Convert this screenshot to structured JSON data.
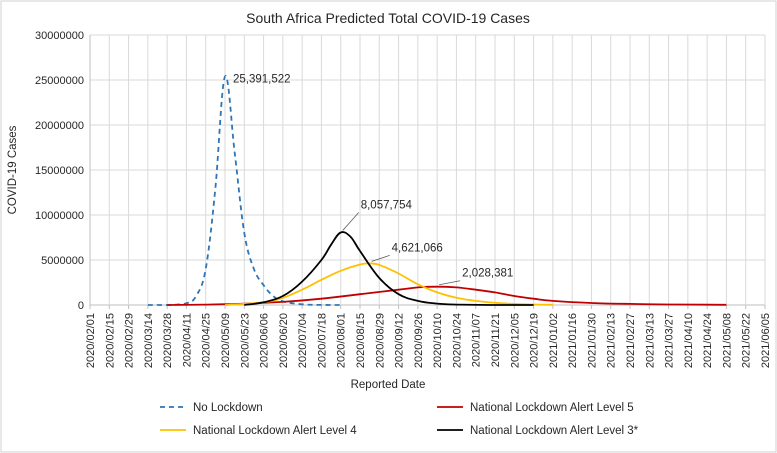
{
  "chart_data": {
    "type": "line",
    "title": "South Africa Predicted Total COVID-19 Cases",
    "xlabel": "Reported Date",
    "ylabel": "COVID-19 Cases",
    "ylim": [
      0,
      30000000
    ],
    "yticks": [
      "0",
      "5000000",
      "10000000",
      "15000000",
      "20000000",
      "25000000",
      "30000000"
    ],
    "x_categories": [
      "2020/02/01",
      "2020/02/15",
      "2020/02/29",
      "2020/03/14",
      "2020/03/28",
      "2020/04/11",
      "2020/04/25",
      "2020/05/09",
      "2020/05/23",
      "2020/06/06",
      "2020/06/20",
      "2020/07/04",
      "2020/07/18",
      "2020/08/01",
      "2020/08/15",
      "2020/08/29",
      "2020/09/12",
      "2020/09/26",
      "2020/10/10",
      "2020/10/24",
      "2020/11/07",
      "2020/11/21",
      "2020/12/05",
      "2020/12/19",
      "2021/01/02",
      "2021/01/16",
      "2021/01/30",
      "2021/02/13",
      "2021/02/27",
      "2021/03/13",
      "2021/03/27",
      "2021/04/10",
      "2021/04/24",
      "2021/05/08",
      "2021/05/22",
      "2021/06/05"
    ],
    "grid": true,
    "legend_position": "bottom",
    "series": [
      {
        "name": "No Lockdown",
        "color": "#2e75b6",
        "dash": "dashed",
        "points": [
          [
            "2020/03/14",
            0
          ],
          [
            "2020/03/28",
            0
          ],
          [
            "2020/04/11",
            200000
          ],
          [
            "2020/04/18",
            1000000
          ],
          [
            "2020/04/25",
            4000000
          ],
          [
            "2020/05/02",
            13000000
          ],
          [
            "2020/05/09",
            25391522
          ],
          [
            "2020/05/16",
            17000000
          ],
          [
            "2020/05/23",
            8000000
          ],
          [
            "2020/05/30",
            4000000
          ],
          [
            "2020/06/06",
            2200000
          ],
          [
            "2020/06/13",
            1000000
          ],
          [
            "2020/06/20",
            400000
          ],
          [
            "2020/07/04",
            80000
          ],
          [
            "2020/07/18",
            10000
          ],
          [
            "2020/08/01",
            0
          ]
        ]
      },
      {
        "name": "National Lockdown Alert Level 5",
        "color": "#c00000",
        "dash": "solid",
        "points": [
          [
            "2020/03/28",
            0
          ],
          [
            "2020/04/25",
            50000
          ],
          [
            "2020/05/23",
            150000
          ],
          [
            "2020/06/20",
            350000
          ],
          [
            "2020/07/18",
            700000
          ],
          [
            "2020/08/15",
            1200000
          ],
          [
            "2020/09/12",
            1700000
          ],
          [
            "2020/09/26",
            1950000
          ],
          [
            "2020/10/10",
            2028381
          ],
          [
            "2020/10/24",
            1950000
          ],
          [
            "2020/11/07",
            1700000
          ],
          [
            "2020/11/21",
            1400000
          ],
          [
            "2020/12/05",
            1000000
          ],
          [
            "2020/12/19",
            700000
          ],
          [
            "2021/01/02",
            450000
          ],
          [
            "2021/01/30",
            220000
          ],
          [
            "2021/02/27",
            120000
          ],
          [
            "2021/03/27",
            60000
          ],
          [
            "2021/04/24",
            30000
          ],
          [
            "2021/05/08",
            20000
          ]
        ]
      },
      {
        "name": "National Lockdown Alert Level 4",
        "color": "#ffc000",
        "dash": "solid",
        "points": [
          [
            "2020/05/09",
            0
          ],
          [
            "2020/06/06",
            300000
          ],
          [
            "2020/06/20",
            800000
          ],
          [
            "2020/07/04",
            1700000
          ],
          [
            "2020/07/18",
            2800000
          ],
          [
            "2020/08/01",
            3800000
          ],
          [
            "2020/08/15",
            4500000
          ],
          [
            "2020/08/22",
            4621066
          ],
          [
            "2020/08/29",
            4450000
          ],
          [
            "2020/09/12",
            3500000
          ],
          [
            "2020/09/26",
            2300000
          ],
          [
            "2020/10/10",
            1400000
          ],
          [
            "2020/10/24",
            800000
          ],
          [
            "2020/11/07",
            450000
          ],
          [
            "2020/11/21",
            250000
          ],
          [
            "2020/12/05",
            120000
          ],
          [
            "2020/12/19",
            60000
          ],
          [
            "2021/01/02",
            20000
          ]
        ]
      },
      {
        "name": "National Lockdown Alert Level 3*",
        "color": "#000000",
        "dash": "solid",
        "points": [
          [
            "2020/05/23",
            0
          ],
          [
            "2020/06/06",
            300000
          ],
          [
            "2020/06/20",
            1000000
          ],
          [
            "2020/07/04",
            2600000
          ],
          [
            "2020/07/18",
            5000000
          ],
          [
            "2020/07/25",
            6700000
          ],
          [
            "2020/08/01",
            8057754
          ],
          [
            "2020/08/08",
            7600000
          ],
          [
            "2020/08/15",
            6000000
          ],
          [
            "2020/08/29",
            3000000
          ],
          [
            "2020/09/12",
            1200000
          ],
          [
            "2020/09/26",
            450000
          ],
          [
            "2020/10/10",
            150000
          ],
          [
            "2020/10/24",
            50000
          ],
          [
            "2020/11/21",
            5000
          ],
          [
            "2020/12/19",
            0
          ]
        ]
      }
    ],
    "annotations": [
      {
        "text": "25,391,522",
        "x": "2020/05/09",
        "y": 25391522
      },
      {
        "text": "8,057,754",
        "x": "2020/08/01",
        "y": 8057754
      },
      {
        "text": "4,621,066",
        "x": "2020/08/22",
        "y": 4621066
      },
      {
        "text": "2,028,381",
        "x": "2020/10/10",
        "y": 2028381
      }
    ],
    "legend": [
      {
        "label": "No Lockdown",
        "series": 0
      },
      {
        "label": "National Lockdown Alert Level 5",
        "series": 1
      },
      {
        "label": "National Lockdown Alert Level 4",
        "series": 2
      },
      {
        "label": "National Lockdown Alert Level 3*",
        "series": 3
      }
    ]
  }
}
